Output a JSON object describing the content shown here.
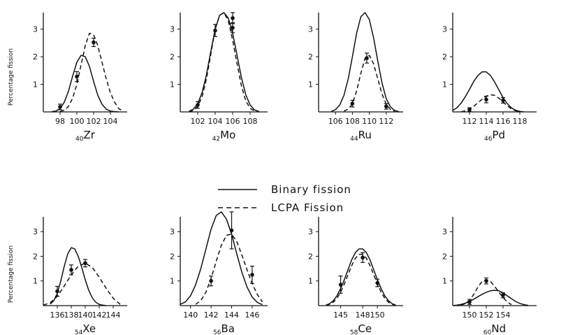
{
  "figure": {
    "ylabel": "Percentage fission",
    "legend": {
      "placement": "center",
      "entries": [
        {
          "label": "Binary fission",
          "style": "solid"
        },
        {
          "label": "LCPA Fission",
          "style": "dashed"
        }
      ]
    }
  },
  "chart_data": [
    {
      "type": "line",
      "element": "Zr",
      "subscript": "40",
      "xlim": [
        96,
        106
      ],
      "ylim": [
        0,
        3.6
      ],
      "xticks": [
        98,
        100,
        102,
        104
      ],
      "yticks": [
        1,
        2,
        3
      ],
      "series": [
        {
          "name": "Binary fission",
          "style": "solid",
          "x": [
            97.0,
            97.5,
            98.0,
            98.5,
            99.0,
            99.5,
            100.0,
            100.5,
            101.0,
            101.5,
            102.0,
            102.5,
            103.0,
            103.5,
            104.0,
            104.5,
            105.0
          ],
          "y": [
            0.01,
            0.03,
            0.12,
            0.35,
            0.75,
            1.3,
            1.8,
            2.05,
            2.0,
            1.65,
            1.1,
            0.6,
            0.28,
            0.1,
            0.03,
            0.01,
            0.0
          ]
        },
        {
          "name": "LCPA Fission",
          "style": "dashed",
          "x": [
            98.0,
            98.5,
            99.0,
            99.5,
            100.0,
            100.5,
            101.0,
            101.5,
            102.0,
            102.5,
            103.0,
            103.5,
            104.0,
            104.5,
            105.0,
            105.5
          ],
          "y": [
            0.02,
            0.06,
            0.2,
            0.5,
            1.0,
            1.7,
            2.4,
            2.85,
            2.8,
            2.4,
            1.8,
            1.2,
            0.7,
            0.35,
            0.12,
            0.03
          ]
        }
      ],
      "points": [
        {
          "x": 98,
          "y": 0.18,
          "err": 0.1
        },
        {
          "x": 100,
          "y": 1.28,
          "err": 0.18
        },
        {
          "x": 102,
          "y": 2.52,
          "err": 0.15
        }
      ]
    },
    {
      "type": "line",
      "element": "Mo",
      "subscript": "42",
      "xlim": [
        100,
        110
      ],
      "ylim": [
        0,
        3.6
      ],
      "xticks": [
        102,
        104,
        106,
        108
      ],
      "yticks": [
        1,
        2,
        3
      ],
      "series": [
        {
          "name": "Binary fission",
          "style": "solid",
          "x": [
            101.0,
            101.5,
            102.0,
            102.5,
            103.0,
            103.5,
            104.0,
            104.5,
            105.0,
            105.5,
            106.0,
            106.5,
            107.0,
            107.5,
            108.0,
            108.5,
            109.0
          ],
          "y": [
            0.02,
            0.1,
            0.3,
            0.7,
            1.35,
            2.2,
            3.0,
            3.5,
            3.6,
            3.4,
            2.85,
            2.05,
            1.25,
            0.62,
            0.25,
            0.07,
            0.02
          ]
        },
        {
          "name": "LCPA Fission",
          "style": "dashed",
          "x": [
            101.0,
            101.5,
            102.0,
            102.5,
            103.0,
            103.5,
            104.0,
            104.5,
            105.0,
            105.5,
            106.0,
            106.5,
            107.0,
            107.5,
            108.0,
            108.5,
            109.0
          ],
          "y": [
            0.0,
            0.05,
            0.2,
            0.55,
            1.2,
            2.1,
            3.0,
            3.5,
            3.6,
            3.3,
            2.6,
            1.75,
            0.95,
            0.4,
            0.13,
            0.03,
            0.0
          ]
        }
      ],
      "points": [
        {
          "x": 102,
          "y": 0.25,
          "err": 0.12
        },
        {
          "x": 104,
          "y": 2.95,
          "err": 0.22
        },
        {
          "x": 106,
          "y": 3.4,
          "err": 0.2
        },
        {
          "x": 106,
          "y": 3.05,
          "err": 0.18
        }
      ]
    },
    {
      "type": "line",
      "element": "Ru",
      "subscript": "44",
      "xlim": [
        104,
        114
      ],
      "ylim": [
        0,
        3.6
      ],
      "xticks": [
        106,
        108,
        110,
        112
      ],
      "yticks": [
        1,
        2,
        3
      ],
      "series": [
        {
          "name": "Binary fission",
          "style": "solid",
          "x": [
            105.5,
            106.0,
            106.5,
            107.0,
            107.5,
            108.0,
            108.5,
            109.0,
            109.5,
            110.0,
            110.5,
            111.0,
            111.5,
            112.0,
            112.5,
            113.0,
            113.5
          ],
          "y": [
            0.02,
            0.08,
            0.25,
            0.6,
            1.2,
            2.0,
            2.85,
            3.45,
            3.6,
            3.35,
            2.7,
            1.85,
            1.05,
            0.48,
            0.18,
            0.05,
            0.01
          ]
        },
        {
          "name": "LCPA Fission",
          "style": "dashed",
          "x": [
            107.0,
            107.5,
            108.0,
            108.5,
            109.0,
            109.5,
            110.0,
            110.5,
            111.0,
            111.5,
            112.0,
            112.5,
            113.0
          ],
          "y": [
            0.03,
            0.1,
            0.3,
            0.75,
            1.4,
            1.95,
            2.05,
            1.75,
            1.2,
            0.65,
            0.28,
            0.08,
            0.02
          ]
        }
      ],
      "points": [
        {
          "x": 108,
          "y": 0.3,
          "err": 0.12
        },
        {
          "x": 109.7,
          "y": 1.95,
          "err": 0.18
        },
        {
          "x": 112,
          "y": 0.2,
          "err": 0.1
        }
      ]
    },
    {
      "type": "line",
      "element": "Pd",
      "subscript": "46",
      "xlim": [
        110,
        120
      ],
      "ylim": [
        0,
        3.6
      ],
      "xticks": [
        112,
        114,
        116,
        118
      ],
      "yticks": [
        1,
        2,
        3
      ],
      "series": [
        {
          "name": "Binary fission",
          "style": "solid",
          "x": [
            110.0,
            110.5,
            111.0,
            111.5,
            112.0,
            112.5,
            113.0,
            113.5,
            114.0,
            114.5,
            115.0,
            115.5,
            116.0,
            116.5,
            117.0,
            117.5,
            118.0,
            118.5
          ],
          "y": [
            0.05,
            0.15,
            0.32,
            0.55,
            0.82,
            1.1,
            1.32,
            1.45,
            1.45,
            1.32,
            1.08,
            0.8,
            0.52,
            0.3,
            0.15,
            0.06,
            0.02,
            0.0
          ]
        },
        {
          "name": "LCPA Fission",
          "style": "dashed",
          "x": [
            111.0,
            111.5,
            112.0,
            112.5,
            113.0,
            113.5,
            114.0,
            114.5,
            115.0,
            115.5,
            116.0,
            116.5,
            117.0,
            117.5,
            118.0
          ],
          "y": [
            0.0,
            0.04,
            0.1,
            0.2,
            0.33,
            0.46,
            0.57,
            0.62,
            0.6,
            0.5,
            0.36,
            0.22,
            0.11,
            0.04,
            0.01
          ]
        }
      ],
      "points": [
        {
          "x": 112,
          "y": 0.08,
          "err": 0.07
        },
        {
          "x": 114,
          "y": 0.45,
          "err": 0.12
        },
        {
          "x": 116,
          "y": 0.42,
          "err": 0.1
        }
      ]
    },
    {
      "type": "line",
      "element": "Xe",
      "subscript": "54",
      "xlim": [
        134,
        146
      ],
      "ylim": [
        0,
        3.6
      ],
      "xticks": [
        136,
        138,
        140,
        142,
        144
      ],
      "yticks": [
        1,
        2,
        3
      ],
      "series": [
        {
          "name": "Binary fission",
          "style": "solid",
          "x": [
            135.0,
            135.5,
            136.0,
            136.5,
            137.0,
            137.5,
            138.0,
            138.5,
            139.0,
            139.5,
            140.0,
            140.5,
            141.0,
            141.5,
            142.0,
            142.5,
            143.0
          ],
          "y": [
            0.06,
            0.2,
            0.5,
            1.0,
            1.6,
            2.1,
            2.35,
            2.3,
            2.0,
            1.55,
            1.05,
            0.62,
            0.32,
            0.14,
            0.05,
            0.02,
            0.0
          ]
        },
        {
          "name": "LCPA Fission",
          "style": "dashed",
          "x": [
            134.0,
            135.0,
            136.0,
            137.0,
            138.0,
            139.0,
            140.0,
            141.0,
            142.0,
            143.0,
            144.0,
            145.0
          ],
          "y": [
            0.02,
            0.12,
            0.38,
            0.8,
            1.25,
            1.6,
            1.72,
            1.55,
            1.15,
            0.7,
            0.3,
            0.05
          ]
        }
      ],
      "points": [
        {
          "x": 136,
          "y": 0.58,
          "err": 0.2
        },
        {
          "x": 138,
          "y": 1.45,
          "err": 0.2
        },
        {
          "x": 140,
          "y": 1.72,
          "err": 0.15
        }
      ]
    },
    {
      "type": "line",
      "element": "Ba",
      "subscript": "56",
      "xlim": [
        139,
        147.5
      ],
      "ylim": [
        0,
        3.6
      ],
      "xticks": [
        140,
        142,
        144,
        146
      ],
      "yticks": [
        1,
        2,
        3
      ],
      "series": [
        {
          "name": "Binary fission",
          "style": "solid",
          "x": [
            139.0,
            139.5,
            140.0,
            140.5,
            141.0,
            141.5,
            142.0,
            142.5,
            143.0,
            143.5,
            144.0,
            144.5,
            145.0,
            145.5,
            146.0,
            146.5,
            147.0
          ],
          "y": [
            0.05,
            0.15,
            0.4,
            0.85,
            1.5,
            2.3,
            3.1,
            3.65,
            3.8,
            3.5,
            2.9,
            2.1,
            1.35,
            0.75,
            0.35,
            0.13,
            0.04
          ]
        },
        {
          "name": "LCPA Fission",
          "style": "dashed",
          "x": [
            140.5,
            141.0,
            141.5,
            142.0,
            142.5,
            143.0,
            143.5,
            144.0,
            144.5,
            145.0,
            145.5,
            146.0,
            146.5,
            147.0
          ],
          "y": [
            0.05,
            0.2,
            0.55,
            1.1,
            1.8,
            2.45,
            2.85,
            2.9,
            2.6,
            2.05,
            1.45,
            0.9,
            0.45,
            0.15
          ]
        }
      ],
      "points": [
        {
          "x": 142,
          "y": 1.0,
          "err": 0.2
        },
        {
          "x": 144,
          "y": 3.05,
          "err": 0.75
        },
        {
          "x": 146,
          "y": 1.25,
          "err": 0.35
        }
      ]
    },
    {
      "type": "line",
      "element": "Ce",
      "subscript": "58",
      "xlim": [
        142,
        153.5
      ],
      "ylim": [
        0,
        3.6
      ],
      "xticks": [
        145,
        148,
        150
      ],
      "yticks": [
        1,
        2,
        3
      ],
      "series": [
        {
          "name": "Binary fission",
          "style": "solid",
          "x": [
            143.0,
            143.5,
            144.0,
            144.5,
            145.0,
            145.5,
            146.0,
            146.5,
            147.0,
            147.5,
            148.0,
            148.5,
            149.0,
            149.5,
            150.0,
            150.5,
            151.0,
            151.5,
            152.0,
            152.5
          ],
          "y": [
            0.02,
            0.08,
            0.2,
            0.4,
            0.7,
            1.05,
            1.45,
            1.85,
            2.15,
            2.3,
            2.3,
            2.15,
            1.85,
            1.45,
            1.05,
            0.7,
            0.4,
            0.2,
            0.08,
            0.02
          ]
        },
        {
          "name": "LCPA Fission",
          "style": "dashed",
          "x": [
            143.0,
            143.5,
            144.0,
            144.5,
            145.0,
            145.5,
            146.0,
            146.5,
            147.0,
            147.5,
            148.0,
            148.5,
            149.0,
            149.5,
            150.0,
            150.5,
            151.0,
            151.5,
            152.0,
            152.5
          ],
          "y": [
            0.01,
            0.05,
            0.14,
            0.3,
            0.55,
            0.88,
            1.25,
            1.62,
            1.92,
            2.08,
            2.08,
            1.92,
            1.62,
            1.25,
            0.88,
            0.55,
            0.3,
            0.14,
            0.05,
            0.01
          ]
        }
      ],
      "points": [
        {
          "x": 145,
          "y": 0.85,
          "err": 0.35
        },
        {
          "x": 148,
          "y": 1.95,
          "err": 0.2
        },
        {
          "x": 150,
          "y": 0.92,
          "err": 0.15
        }
      ]
    },
    {
      "type": "line",
      "element": "Nd",
      "subscript": "60",
      "xlim": [
        148,
        158
      ],
      "ylim": [
        0,
        3.6
      ],
      "xticks": [
        150,
        152,
        154
      ],
      "yticks": [
        1,
        2,
        3
      ],
      "series": [
        {
          "name": "Binary fission",
          "style": "solid",
          "x": [
            148.0,
            148.5,
            149.0,
            149.5,
            150.0,
            150.5,
            151.0,
            151.5,
            152.0,
            152.5,
            153.0,
            153.5,
            154.0,
            154.5,
            155.0,
            155.5,
            156.0,
            156.5,
            157.0
          ],
          "y": [
            0.0,
            0.02,
            0.05,
            0.1,
            0.17,
            0.26,
            0.36,
            0.46,
            0.54,
            0.6,
            0.62,
            0.6,
            0.52,
            0.4,
            0.28,
            0.17,
            0.09,
            0.04,
            0.01
          ]
        },
        {
          "name": "LCPA Fission",
          "style": "dashed",
          "x": [
            149.0,
            149.5,
            150.0,
            150.5,
            151.0,
            151.5,
            152.0,
            152.5,
            153.0,
            153.5,
            154.0,
            154.5,
            155.0
          ],
          "y": [
            0.02,
            0.08,
            0.22,
            0.45,
            0.75,
            0.98,
            1.06,
            0.98,
            0.78,
            0.55,
            0.33,
            0.15,
            0.04
          ]
        }
      ],
      "points": [
        {
          "x": 150,
          "y": 0.15,
          "err": 0.1
        },
        {
          "x": 152,
          "y": 1.0,
          "err": 0.12
        },
        {
          "x": 154,
          "y": 0.42,
          "err": 0.1
        }
      ]
    }
  ]
}
